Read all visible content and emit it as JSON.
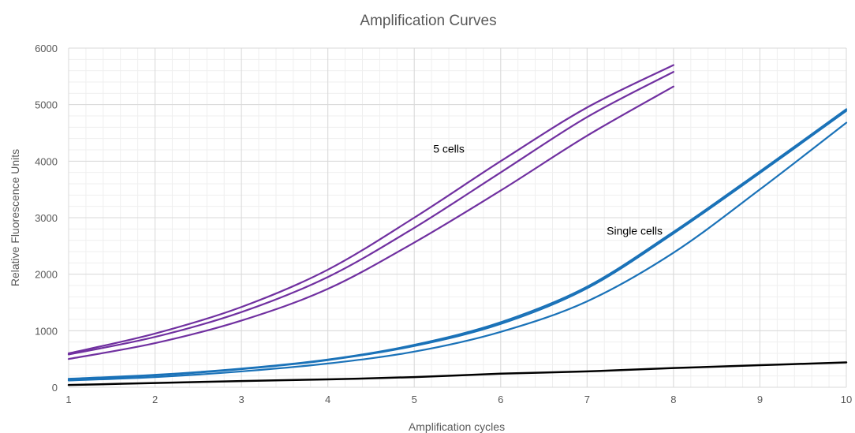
{
  "chart_data": {
    "type": "line",
    "title": "Amplification Curves",
    "xlabel": "Amplification cycles",
    "ylabel": "Relative Fluorescence Units",
    "xlim": [
      1,
      10
    ],
    "ylim": [
      0,
      6000
    ],
    "xticks": [
      1,
      2,
      3,
      4,
      5,
      6,
      7,
      8,
      9,
      10
    ],
    "yticks": [
      0,
      1000,
      2000,
      3000,
      4000,
      5000,
      6000
    ],
    "grid": true,
    "minor_grid": true,
    "legend": "none",
    "colors": {
      "five_cells": "#7030a0",
      "single_cells": "#1a72b8",
      "baseline": "#000000"
    },
    "series": [
      {
        "group": "five_cells",
        "x": [
          1,
          2,
          3,
          4,
          5,
          6,
          7,
          8
        ],
        "y": [
          600,
          950,
          1420,
          2080,
          3000,
          4000,
          4950,
          5700
        ]
      },
      {
        "group": "five_cells",
        "x": [
          1,
          2,
          3,
          4,
          5,
          6,
          7,
          8
        ],
        "y": [
          580,
          890,
          1330,
          1950,
          2820,
          3800,
          4780,
          5580
        ]
      },
      {
        "group": "five_cells",
        "x": [
          1,
          2,
          3,
          4,
          5,
          6,
          7,
          8
        ],
        "y": [
          500,
          780,
          1180,
          1740,
          2560,
          3480,
          4450,
          5320
        ]
      },
      {
        "group": "single_cells",
        "x": [
          1,
          2,
          3,
          4,
          5,
          6,
          7,
          8,
          9,
          10
        ],
        "y": [
          150,
          220,
          330,
          490,
          750,
          1150,
          1780,
          2750,
          3820,
          4920
        ]
      },
      {
        "group": "single_cells",
        "x": [
          1,
          2,
          3,
          4,
          5,
          6,
          7,
          8,
          9,
          10
        ],
        "y": [
          140,
          210,
          320,
          480,
          730,
          1120,
          1750,
          2720,
          3790,
          4890
        ]
      },
      {
        "group": "single_cells",
        "x": [
          1,
          2,
          3,
          4,
          5,
          6,
          7,
          8,
          9,
          10
        ],
        "y": [
          120,
          180,
          280,
          420,
          630,
          980,
          1520,
          2380,
          3500,
          4680
        ]
      },
      {
        "group": "baseline",
        "x": [
          1,
          2,
          3,
          4,
          5,
          6,
          7,
          8,
          9,
          10
        ],
        "y": [
          40,
          75,
          110,
          140,
          180,
          240,
          280,
          340,
          390,
          440
        ]
      }
    ],
    "annotations": [
      {
        "text": "5 cells",
        "x": 5.4,
        "y": 4150
      },
      {
        "text": "Single cells",
        "x": 7.55,
        "y": 2700
      }
    ]
  }
}
